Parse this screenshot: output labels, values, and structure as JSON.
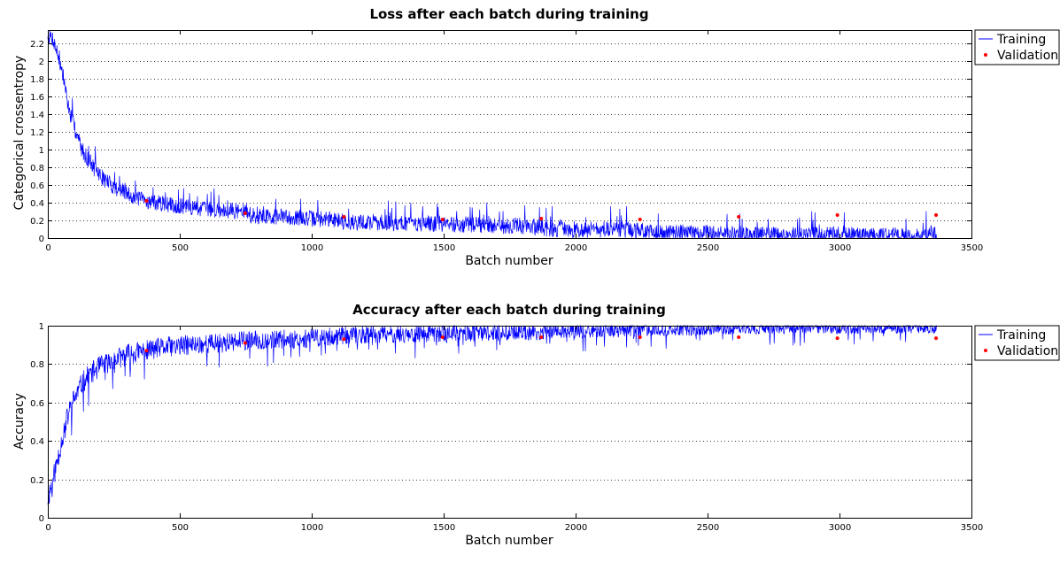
{
  "colors": {
    "training": "#0000ff",
    "validation": "#ff0000",
    "grid": "#000000",
    "axis": "#000000"
  },
  "chart_data": [
    {
      "type": "line",
      "title": "Loss after each batch during training",
      "xlabel": "Batch number",
      "ylabel": "Categorical crossentropy",
      "xlim": [
        0,
        3500
      ],
      "ylim": [
        0,
        2.35
      ],
      "x_ticks": [
        0,
        500,
        1000,
        1500,
        2000,
        2500,
        3000,
        3500
      ],
      "y_ticks": [
        0,
        0.2,
        0.4,
        0.6,
        0.8,
        1,
        1.2,
        1.4,
        1.6,
        1.8,
        2,
        2.2
      ],
      "grid": "dotted horizontal",
      "legend_placement": "right-top",
      "series": [
        {
          "name": "Training",
          "style": "line",
          "trend": {
            "x": [
              0,
              20,
              40,
              60,
              80,
              100,
              130,
              160,
              200,
              250,
              300,
              370,
              450,
              550,
              650,
              750,
              760,
              900,
              1000,
              1100,
              1130,
              1300,
              1500,
              1700,
              1870,
              1890,
              2000,
              2200,
              2250,
              2260,
              2400,
              2600,
              2620,
              2640,
              2800,
              3000,
              3200,
              3370
            ],
            "y": [
              2.3,
              2.25,
              2.05,
              1.8,
              1.45,
              1.25,
              1.0,
              0.85,
              0.7,
              0.58,
              0.5,
              0.42,
              0.38,
              0.34,
              0.32,
              0.3,
              0.25,
              0.24,
              0.22,
              0.21,
              0.18,
              0.17,
              0.16,
              0.14,
              0.13,
              0.1,
              0.1,
              0.09,
              0.08,
              0.06,
              0.06,
              0.05,
              0.05,
              0.03,
              0.03,
              0.03,
              0.025,
              0.03
            ]
          }
        },
        {
          "name": "Validation",
          "style": "points",
          "x": [
            374,
            748,
            1122,
            1496,
            1870,
            2244,
            2618,
            2992,
            3366
          ],
          "y": [
            0.42,
            0.28,
            0.24,
            0.21,
            0.22,
            0.21,
            0.24,
            0.26,
            0.26
          ]
        }
      ]
    },
    {
      "type": "line",
      "title": "Accuracy after each batch during training",
      "xlabel": "Batch number",
      "ylabel": "Accuracy",
      "xlim": [
        0,
        3500
      ],
      "ylim": [
        0,
        1
      ],
      "x_ticks": [
        0,
        500,
        1000,
        1500,
        2000,
        2500,
        3000,
        3500
      ],
      "y_ticks": [
        0,
        0.2,
        0.4,
        0.6,
        0.8,
        1
      ],
      "grid": "dotted horizontal",
      "legend_placement": "right-top",
      "series": [
        {
          "name": "Training",
          "style": "line",
          "trend": {
            "x": [
              0,
              20,
              40,
              60,
              80,
              100,
              130,
              160,
              200,
              250,
              300,
              370,
              450,
              550,
              650,
              750,
              900,
              1000,
              1130,
              1300,
              1500,
              1700,
              1870,
              1890,
              2000,
              2250,
              2260,
              2500,
              2620,
              2640,
              3000,
              3370
            ],
            "y": [
              0.1,
              0.2,
              0.32,
              0.45,
              0.55,
              0.62,
              0.7,
              0.75,
              0.79,
              0.82,
              0.85,
              0.87,
              0.89,
              0.9,
              0.91,
              0.92,
              0.93,
              0.935,
              0.95,
              0.955,
              0.96,
              0.965,
              0.965,
              0.975,
              0.975,
              0.98,
              0.985,
              0.985,
              0.99,
              0.992,
              0.99,
              0.99
            ]
          }
        },
        {
          "name": "Validation",
          "style": "points",
          "x": [
            374,
            748,
            1122,
            1496,
            1870,
            2244,
            2618,
            2992,
            3366
          ],
          "y": [
            0.87,
            0.91,
            0.93,
            0.94,
            0.94,
            0.94,
            0.94,
            0.935,
            0.935
          ]
        }
      ]
    }
  ]
}
